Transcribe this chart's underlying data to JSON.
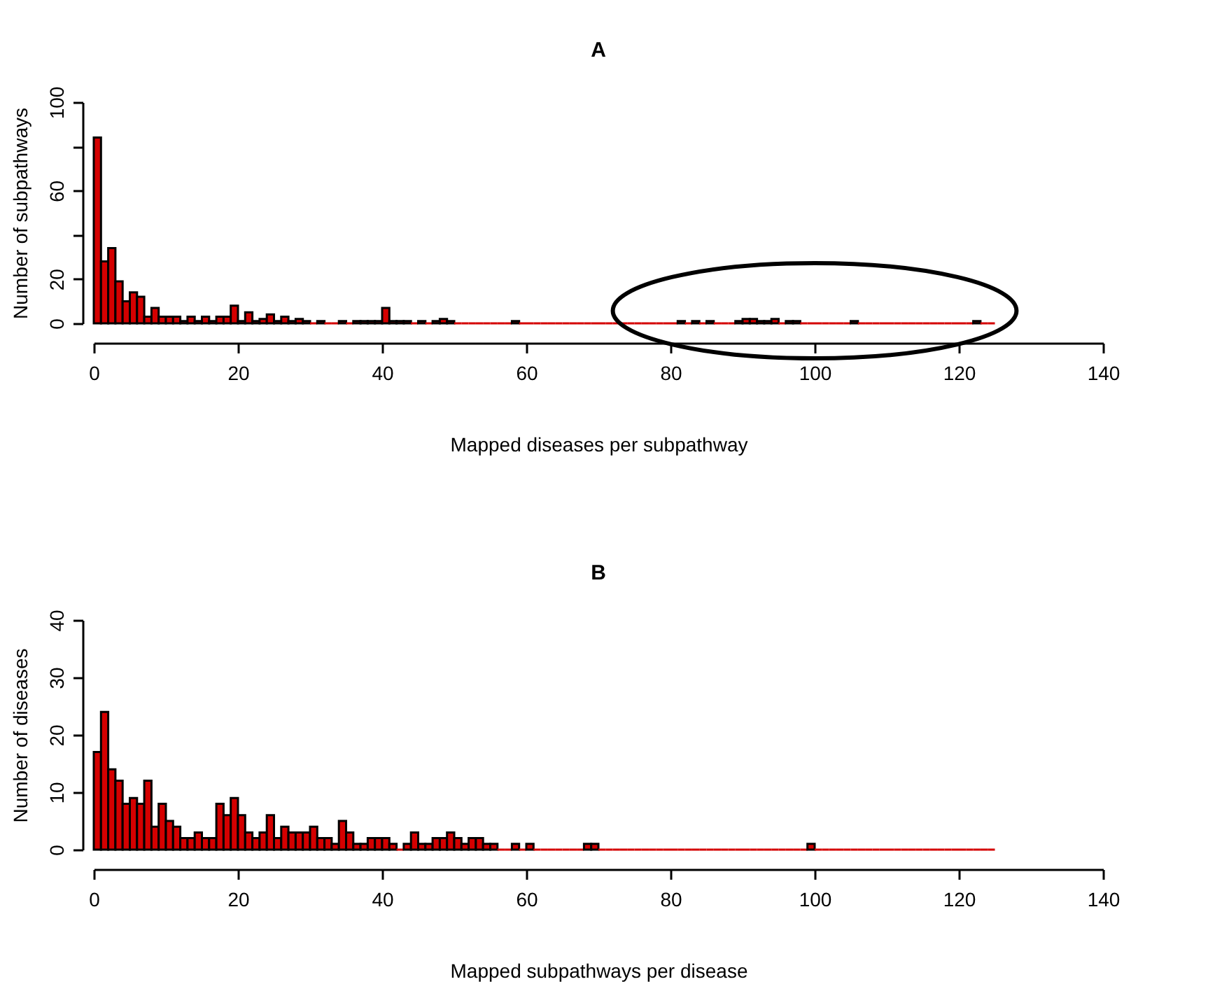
{
  "chart_data": [
    {
      "type": "histogram",
      "title": "A",
      "xlabel": "Mapped diseases per subpathway",
      "ylabel": "Number of subpathways",
      "color": "#d40000",
      "bins": [
        0,
        1,
        2,
        3,
        4,
        5,
        6,
        7,
        8,
        9,
        10,
        11,
        12,
        13,
        14,
        15,
        16,
        17,
        18,
        19,
        20,
        21,
        22,
        23,
        24,
        25,
        26,
        27,
        28,
        29,
        30,
        31,
        32,
        33,
        34,
        35,
        36,
        37,
        38,
        39,
        40,
        41,
        42,
        43,
        44,
        45,
        46,
        47,
        48,
        49,
        50,
        51,
        52,
        53,
        54,
        55,
        56,
        57,
        58,
        59,
        60,
        61,
        62,
        63,
        64,
        65,
        66,
        67,
        68,
        69,
        70,
        71,
        72,
        73,
        74,
        75,
        76,
        77,
        78,
        79,
        80,
        81,
        82,
        83,
        84,
        85,
        86,
        87,
        88,
        89,
        90,
        91,
        92,
        93,
        94,
        95,
        96,
        97,
        98,
        99,
        100,
        101,
        102,
        103,
        104,
        105,
        106,
        107,
        108,
        109,
        110,
        111,
        112,
        113,
        114,
        115,
        116,
        117,
        118,
        119,
        120,
        121,
        122,
        123,
        124,
        125
      ],
      "values": [
        84,
        28,
        34,
        19,
        10,
        14,
        12,
        3,
        7,
        3,
        3,
        3,
        1,
        3,
        1,
        3,
        1,
        3,
        3,
        8,
        1,
        5,
        1,
        2,
        4,
        1,
        3,
        1,
        2,
        1,
        0,
        1,
        0,
        0,
        1,
        0,
        1,
        1,
        1,
        1,
        7,
        1,
        1,
        1,
        0,
        1,
        0,
        1,
        2,
        1,
        0,
        0,
        0,
        0,
        0,
        0,
        0,
        0,
        1,
        0,
        0,
        0,
        0,
        0,
        0,
        0,
        0,
        0,
        0,
        0,
        0,
        0,
        0,
        0,
        0,
        0,
        0,
        0,
        0,
        0,
        0,
        1,
        0,
        1,
        0,
        1,
        0,
        0,
        0,
        1,
        2,
        2,
        1,
        1,
        2,
        0,
        1,
        1,
        0,
        0,
        0,
        0,
        0,
        0,
        0,
        1,
        0,
        0,
        0,
        0,
        0,
        0,
        0,
        0,
        0,
        0,
        0,
        0,
        0,
        0,
        0,
        0,
        1,
        0,
        0
      ],
      "xlim": [
        0,
        140
      ],
      "xticks": [
        0,
        20,
        40,
        60,
        80,
        100,
        120,
        140
      ],
      "ylim": [
        0,
        100
      ],
      "yticks": [
        0,
        20,
        {
          "value": 40,
          "label": null
        },
        60,
        {
          "value": 80,
          "label": null
        },
        100
      ],
      "grid": false
    },
    {
      "type": "histogram",
      "title": "B",
      "xlabel": "Mapped subpathways per disease",
      "ylabel": "Number of diseases",
      "color": "#d40000",
      "bins": [
        0,
        1,
        2,
        3,
        4,
        5,
        6,
        7,
        8,
        9,
        10,
        11,
        12,
        13,
        14,
        15,
        16,
        17,
        18,
        19,
        20,
        21,
        22,
        23,
        24,
        25,
        26,
        27,
        28,
        29,
        30,
        31,
        32,
        33,
        34,
        35,
        36,
        37,
        38,
        39,
        40,
        41,
        42,
        43,
        44,
        45,
        46,
        47,
        48,
        49,
        50,
        51,
        52,
        53,
        54,
        55,
        56,
        57,
        58,
        59,
        60,
        61,
        62,
        63,
        64,
        65,
        66,
        67,
        68,
        69,
        70,
        71,
        72,
        73,
        74,
        75,
        76,
        77,
        78,
        79,
        80,
        81,
        82,
        83,
        84,
        85,
        86,
        87,
        88,
        89,
        90,
        91,
        92,
        93,
        94,
        95,
        96,
        97,
        98,
        99,
        100,
        101,
        102,
        103,
        104,
        105,
        106,
        107,
        108,
        109,
        110,
        111,
        112,
        113,
        114,
        115,
        116,
        117,
        118,
        119,
        120,
        121,
        122,
        123,
        124,
        125
      ],
      "values": [
        17,
        24,
        14,
        12,
        8,
        9,
        8,
        12,
        4,
        8,
        5,
        4,
        2,
        2,
        3,
        2,
        2,
        8,
        6,
        9,
        6,
        3,
        2,
        3,
        6,
        2,
        4,
        3,
        3,
        3,
        4,
        2,
        2,
        1,
        5,
        3,
        1,
        1,
        2,
        2,
        2,
        1,
        0,
        1,
        3,
        1,
        1,
        2,
        2,
        3,
        2,
        1,
        2,
        2,
        1,
        1,
        0,
        0,
        1,
        0,
        1,
        0,
        0,
        0,
        0,
        0,
        0,
        0,
        1,
        1,
        0,
        0,
        0,
        0,
        0,
        0,
        0,
        0,
        0,
        0,
        0,
        0,
        0,
        0,
        0,
        0,
        0,
        0,
        0,
        0,
        0,
        0,
        0,
        0,
        0,
        0,
        0,
        0,
        0,
        1,
        0,
        0,
        0,
        0,
        0,
        0,
        0,
        0,
        0,
        0,
        0,
        0,
        0,
        0,
        0,
        0,
        0,
        0,
        0,
        0,
        0,
        0,
        0,
        0,
        0
      ],
      "xlim": [
        0,
        140
      ],
      "xticks": [
        0,
        20,
        40,
        60,
        80,
        100,
        120,
        140
      ],
      "ylim": [
        0,
        40
      ],
      "yticks": [
        0,
        10,
        20,
        30,
        40
      ],
      "grid": false
    }
  ]
}
